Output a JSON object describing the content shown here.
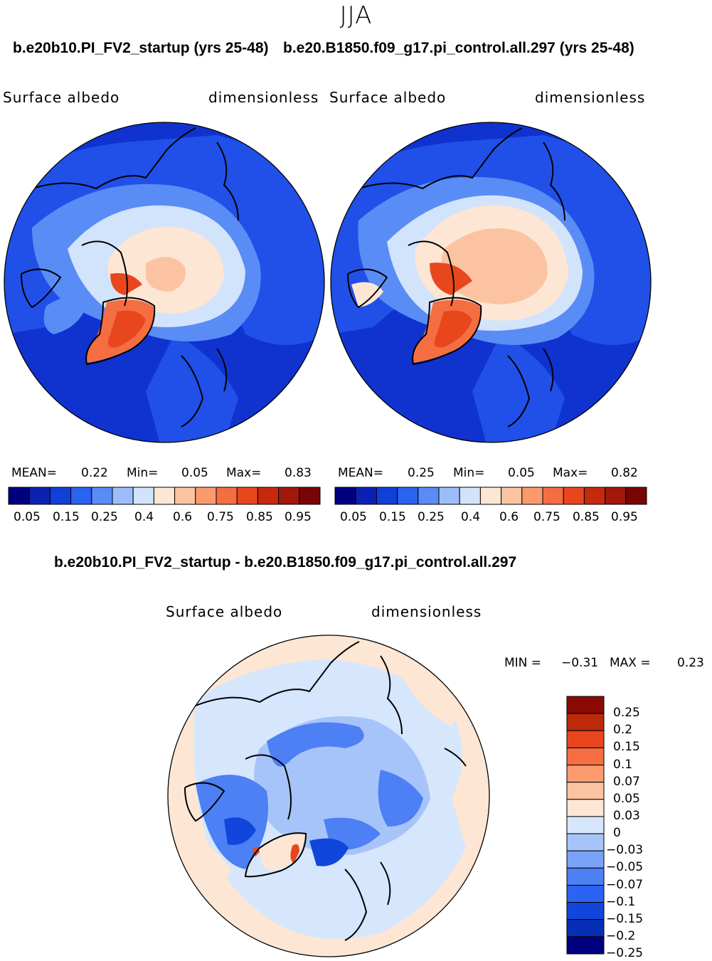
{
  "figure": {
    "season": "JJA",
    "case_title": "b.e20b10.PI_FV2_startup (yrs 25-48)",
    "control_title": "b.e20.B1850.f09_g17.pi_control.all.297 (yrs 25-48)",
    "diff_title": "b.e20b10.PI_FV2_startup - b.e20.B1850.f09_g17.pi_control.all.297"
  },
  "panels": [
    {
      "variable": "Surface albedo",
      "units": "dimensionless",
      "mean_label": "MEAN=",
      "mean": "0.22",
      "min_label": "Min=",
      "min": "0.05",
      "max_label": "Max=",
      "max": "0.83"
    },
    {
      "variable": "Surface albedo",
      "units": "dimensionless",
      "mean_label": "MEAN=",
      "mean": "0.25",
      "min_label": "Min=",
      "min": "0.05",
      "max_label": "Max=",
      "max": "0.82"
    }
  ],
  "diff_panel": {
    "variable": "Surface albedo",
    "units": "dimensionless",
    "min_label": "MIN =",
    "min": "−0.31",
    "max_label": "MAX =",
    "max": "0.23"
  },
  "colorbars": {
    "abs": {
      "colors": [
        "#00007f",
        "#0a22b4",
        "#1040d8",
        "#2a63f0",
        "#5a8cf6",
        "#9dbcfa",
        "#d2e3fc",
        "#fde6d4",
        "#fcc3a2",
        "#fa9a6e",
        "#f46e42",
        "#e8471e",
        "#c8280c",
        "#a3180a",
        "#7a0506"
      ],
      "tick_labels": [
        "0.05",
        "0.15",
        "0.25",
        "0.4",
        "0.6",
        "0.75",
        "0.85",
        "0.95"
      ]
    },
    "diff": {
      "colors": [
        "#00007f",
        "#062fb6",
        "#1146dc",
        "#2d63f2",
        "#4c80f4",
        "#7aa3f8",
        "#a7c4fa",
        "#d6e6fc",
        "#fde6d4",
        "#fcc3a2",
        "#fa9a6e",
        "#f46e42",
        "#e8471e",
        "#bb2a0a",
        "#8b0a06"
      ],
      "tick_labels": [
        "0.25",
        "0.2",
        "0.15",
        "0.1",
        "0.07",
        "0.05",
        "0.03",
        "0",
        "−0.03",
        "−0.05",
        "−0.07",
        "−0.1",
        "−0.15",
        "−0.2",
        "−0.25"
      ]
    }
  },
  "map_colors": {
    "ocean_low": "#1033cf",
    "land_low": "#2050e8",
    "coast_mid": "#5a8cf6",
    "ice_edge": "#d2e3fc",
    "sea_ice": "#fde6d4",
    "ice_core": "#fcc3a2",
    "greenland": "#f46e42",
    "greenland_core": "#e8471e",
    "diff_base": "#fde6d4",
    "diff_neutral": "#d6e6fc",
    "diff_neg1": "#a7c4fa",
    "diff_neg2": "#4c80f4",
    "diff_neg3": "#1146dc",
    "diff_pos": "#e8471e"
  }
}
